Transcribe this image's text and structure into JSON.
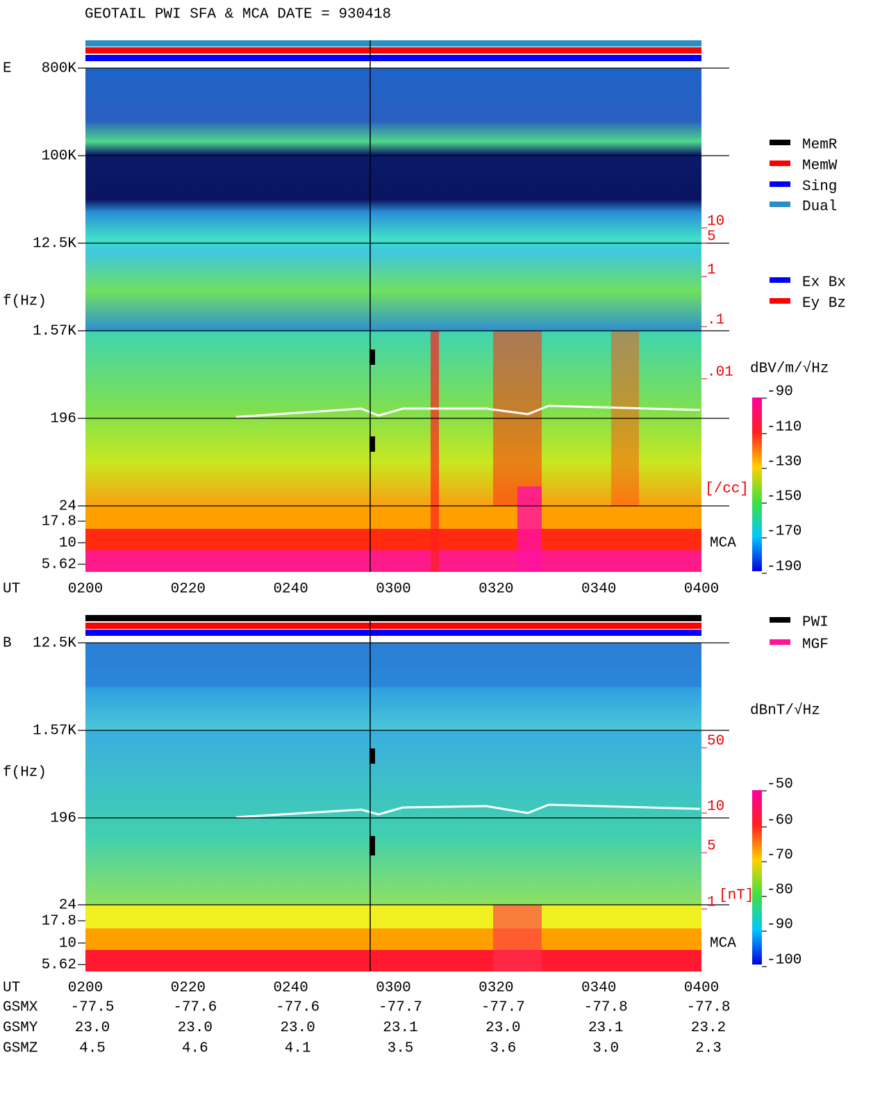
{
  "title": "GEOTAIL  PWI SFA & MCA   DATE = 930418",
  "panels": [
    {
      "label": "E",
      "ylabel": "f(Hz)",
      "time_label": "UT",
      "freq_ticks": [
        "800K",
        "100K",
        "12.5K",
        "1.57K",
        "196",
        "24",
        "17.8",
        "10",
        "5.62"
      ],
      "times": [
        "0200",
        "0220",
        "0240",
        "0300",
        "0320",
        "0340",
        "0400"
      ],
      "right_ticks": [
        "10",
        "5",
        "1",
        ".1",
        ".01"
      ],
      "right_unit": "[/cc]",
      "mca": "MCA",
      "colorbar_unit": "dBV/m/√Hz",
      "colorbar_ticks": [
        -90,
        -110,
        -130,
        -150,
        -170,
        -190
      ]
    },
    {
      "label": "B",
      "ylabel": "f(Hz)",
      "time_label": "UT",
      "freq_ticks": [
        "12.5K",
        "1.57K",
        "196",
        "24",
        "17.8",
        "10",
        "5.62"
      ],
      "times": [
        "0200",
        "0220",
        "0240",
        "0300",
        "0320",
        "0340",
        "0400"
      ],
      "right_ticks": [
        "50",
        "10",
        "5",
        "1"
      ],
      "right_unit": "[nT]",
      "mca": "MCA",
      "colorbar_unit": "dBnT/√Hz",
      "colorbar_ticks": [
        -50,
        -60,
        -70,
        -80,
        -90,
        -100
      ]
    }
  ],
  "legend_modes": [
    {
      "name": "MemR",
      "color": "#000000"
    },
    {
      "name": "MemW",
      "color": "#ff0000"
    },
    {
      "name": "Sing",
      "color": "#0000ff"
    },
    {
      "name": "Dual",
      "color": "#2a8fc4"
    }
  ],
  "legend_components": [
    {
      "name": "Ex Bx",
      "color": "#0000ff"
    },
    {
      "name": "Ey Bz",
      "color": "#ff0000"
    }
  ],
  "legend_sources": [
    {
      "name": "PWI",
      "color": "#000000"
    },
    {
      "name": "MGF",
      "color": "#ff1493"
    }
  ],
  "orbit": [
    {
      "label": "GSMX",
      "values": [
        "-77.5",
        "-77.6",
        "-77.6",
        "-77.7",
        "-77.7",
        "-77.8",
        "-77.8"
      ]
    },
    {
      "label": "GSMY",
      "values": [
        "23.0",
        "23.0",
        "23.0",
        "23.1",
        "23.0",
        "23.1",
        "23.2"
      ]
    },
    {
      "label": "GSMZ",
      "values": [
        "4.5",
        "4.6",
        "4.1",
        "3.5",
        "3.6",
        "3.0",
        "2.3"
      ]
    }
  ]
}
